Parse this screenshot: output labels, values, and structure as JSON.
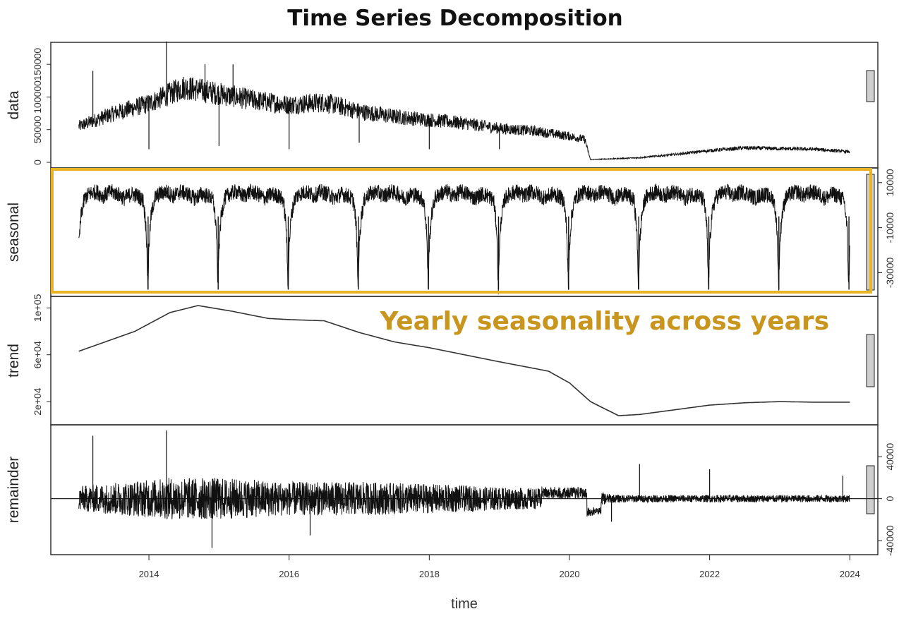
{
  "title": "Time Series Decomposition",
  "annotation": "Yearly seasonality across years",
  "colors": {
    "highlight": "#E8B422",
    "annotation": "#C8961E",
    "line": "#111111",
    "scalebar": "#cfcfcf"
  },
  "chart_data": {
    "type": "line",
    "title": "Time Series Decomposition",
    "xlabel": "time",
    "xlim": [
      2012.6,
      2024.4
    ],
    "x_ticks": [
      "2014",
      "2016",
      "2018",
      "2020",
      "2022",
      "2024"
    ],
    "x_tick_values": [
      2014,
      2016,
      2018,
      2020,
      2022,
      2024
    ],
    "grid": false,
    "highlight": {
      "panel": "seasonal",
      "label": "Yearly seasonality across years"
    },
    "panels": [
      {
        "name": "data",
        "ylim": [
          0,
          175000
        ],
        "y_ticks": [
          "0",
          "50000",
          "100000",
          "150000"
        ],
        "y_tick_values": [
          0,
          50000,
          100000,
          150000
        ],
        "tick_side": "left",
        "x": [
          2013.0,
          2013.5,
          2014.0,
          2014.5,
          2015.0,
          2015.5,
          2016.0,
          2016.5,
          2017.0,
          2017.5,
          2018.0,
          2018.5,
          2019.0,
          2019.5,
          2020.0,
          2020.22,
          2020.3,
          2020.5,
          2021.0,
          2021.5,
          2022.0,
          2022.5,
          2023.0,
          2023.5,
          2024.0
        ],
        "y": [
          55000,
          75000,
          90000,
          115000,
          105000,
          95000,
          88000,
          92000,
          78000,
          70000,
          65000,
          60000,
          52000,
          48000,
          40000,
          35000,
          4000,
          5000,
          7000,
          12000,
          18000,
          22000,
          21000,
          20000,
          16000
        ],
        "spikes": [
          [
            2013.2,
            140000
          ],
          [
            2014.25,
            185000
          ],
          [
            2014.8,
            150000
          ],
          [
            2015.2,
            150000
          ],
          [
            2014.0,
            20000
          ],
          [
            2015.0,
            25000
          ],
          [
            2016.0,
            20000
          ],
          [
            2017.0,
            30000
          ],
          [
            2018.0,
            20000
          ],
          [
            2019.0,
            20000
          ]
        ]
      },
      {
        "name": "seasonal",
        "ylim": [
          -38000,
          14000
        ],
        "y_ticks": [
          "-30000",
          "-10000",
          "10000"
        ],
        "y_tick_values": [
          -30000,
          -10000,
          10000
        ],
        "tick_side": "right",
        "x": [
          0.0,
          0.03,
          0.08,
          0.15,
          0.25,
          0.35,
          0.45,
          0.55,
          0.65,
          0.75,
          0.85,
          0.92,
          0.96,
          0.985,
          1.0
        ],
        "y": [
          -18000,
          -5000,
          3000,
          5000,
          6000,
          4000,
          6000,
          5000,
          3000,
          5000,
          4000,
          2000,
          -10000,
          -37000,
          -18000
        ],
        "period_years": 1
      },
      {
        "name": "trend",
        "ylim": [
          5000,
          105000
        ],
        "y_ticks": [
          "2e+04",
          "6e+04",
          "1e+05"
        ],
        "y_tick_values": [
          20000,
          60000,
          100000
        ],
        "tick_side": "left",
        "x": [
          2013.0,
          2013.8,
          2014.3,
          2014.7,
          2015.2,
          2015.7,
          2016.0,
          2016.5,
          2017.0,
          2017.5,
          2018.0,
          2018.5,
          2019.0,
          2019.7,
          2020.0,
          2020.3,
          2020.7,
          2021.0,
          2021.5,
          2022.0,
          2022.5,
          2023.0,
          2023.5,
          2024.0
        ],
        "y": [
          63000,
          80000,
          96000,
          102000,
          97000,
          91000,
          90000,
          89000,
          79000,
          71000,
          66000,
          60000,
          54000,
          46000,
          36000,
          20000,
          8000,
          9000,
          13000,
          17000,
          19000,
          20000,
          19500,
          19500
        ]
      },
      {
        "name": "remainder",
        "ylim": [
          -48000,
          65000
        ],
        "y_ticks": [
          "-40000",
          "0",
          "40000"
        ],
        "y_tick_values": [
          -40000,
          0,
          40000
        ],
        "tick_side": "right",
        "amplitude": [
          [
            2013.0,
            12000
          ],
          [
            2014.3,
            20000
          ],
          [
            2015.0,
            20000
          ],
          [
            2016.0,
            16000
          ],
          [
            2017.0,
            16000
          ],
          [
            2018.0,
            14000
          ],
          [
            2019.0,
            11000
          ],
          [
            2020.0,
            9000
          ],
          [
            2020.3,
            9000
          ],
          [
            2020.6,
            4000
          ],
          [
            2021.0,
            3500
          ],
          [
            2022.0,
            3500
          ],
          [
            2024.0,
            3500
          ]
        ],
        "spikes": [
          [
            2013.2,
            60000
          ],
          [
            2014.25,
            65000
          ],
          [
            2014.9,
            -47000
          ],
          [
            2016.3,
            -35000
          ],
          [
            2020.6,
            -22000
          ],
          [
            2021.0,
            33000
          ],
          [
            2022.0,
            28000
          ],
          [
            2023.9,
            22000
          ]
        ]
      }
    ]
  }
}
